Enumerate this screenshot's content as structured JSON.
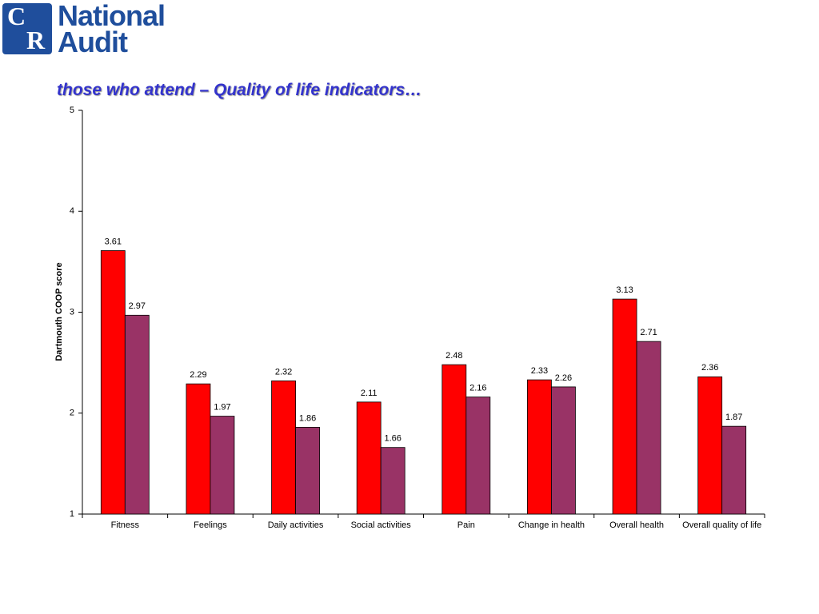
{
  "logo": {
    "letters": [
      "C",
      "R"
    ],
    "name": [
      "National",
      "Audit"
    ]
  },
  "chart_data": {
    "type": "bar",
    "title": "those who attend – Quality of life indicators…",
    "y_label": "Dartmouth COOP score",
    "categories": [
      "Fitness",
      "Feelings",
      "Daily activities",
      "Social activities",
      "Pain",
      "Change in health",
      "Overall health",
      "Overall quality of life"
    ],
    "series": [
      {
        "color": "#ff0000",
        "values": [
          3.61,
          2.29,
          2.32,
          2.11,
          2.48,
          2.33,
          3.13,
          2.36
        ]
      },
      {
        "color": "#993366",
        "values": [
          2.97,
          1.97,
          1.86,
          1.66,
          2.16,
          2.26,
          2.71,
          1.87
        ]
      }
    ],
    "ylim": [
      1,
      5
    ],
    "yticks": [
      1,
      2,
      3,
      4,
      5
    ],
    "grid": false
  }
}
